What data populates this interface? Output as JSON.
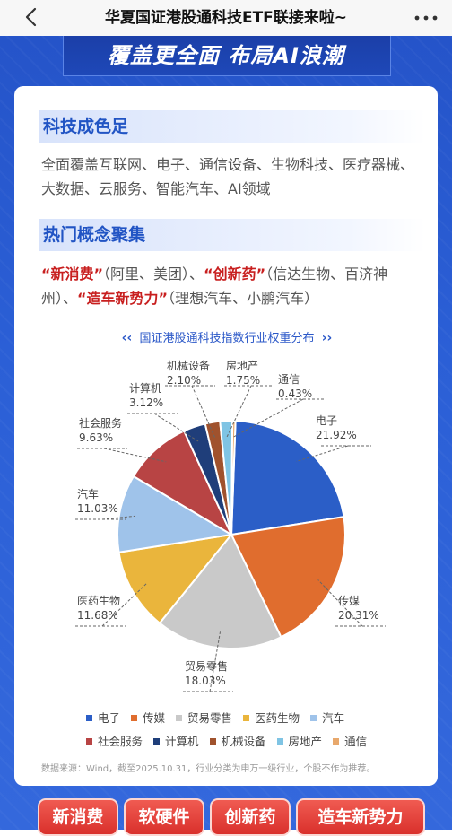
{
  "nav": {
    "title": "华夏国证港股通科技ETF联接来啦~",
    "back_icon": "chevron-left-icon",
    "more_icon": "more-dots-icon"
  },
  "banner": {
    "text": "覆盖更全面  布局AI浪潮"
  },
  "section1": {
    "heading": "科技成色足",
    "body": "全面覆盖互联网、电子、通信设备、生物科技、医疗器械、大数据、云服务、智能汽车、AI领域"
  },
  "section2": {
    "heading": "热门概念聚集",
    "t1": "“新消费”",
    "t2": "（阿里、美团）、",
    "t3": "“创新药”",
    "t4": "（信达生物、百济神州）、",
    "t5": "“造车新势力”",
    "t6": "（理想汽车、小鹏汽车）"
  },
  "chart_data": {
    "type": "pie",
    "title": "国证港股通科技指数行业权重分布",
    "slices": [
      {
        "name": "电子",
        "value": 21.92,
        "label": "21.92%",
        "color": "#2b5ec7"
      },
      {
        "name": "传媒",
        "value": 20.31,
        "label": "20.31%",
        "color": "#e06d2e"
      },
      {
        "name": "贸易零售",
        "value": 18.03,
        "label": "18.03%",
        "color": "#c9c9c9"
      },
      {
        "name": "医药生物",
        "value": 11.68,
        "label": "11.68%",
        "color": "#eab53c"
      },
      {
        "name": "汽车",
        "value": 11.03,
        "label": "11.03%",
        "color": "#9fc3ea"
      },
      {
        "name": "社会服务",
        "value": 9.63,
        "label": "9.63%",
        "color": "#b84444"
      },
      {
        "name": "计算机",
        "value": 3.12,
        "label": "3.12%",
        "color": "#1f3e7a"
      },
      {
        "name": "机械设备",
        "value": 2.1,
        "label": "2.10%",
        "color": "#a0522d"
      },
      {
        "name": "房地产",
        "value": 1.75,
        "label": "1.75%",
        "color": "#7fc4e4"
      },
      {
        "name": "通信",
        "value": 0.43,
        "label": "0.43%",
        "color": "#e8a86c"
      }
    ]
  },
  "source": "数据来源：Wind，截至2025.10.31，行业分类为申万一级行业，个股不作为推荐。",
  "tags": [
    "新消费",
    "软硬件",
    "创新药",
    "造车新势力"
  ]
}
